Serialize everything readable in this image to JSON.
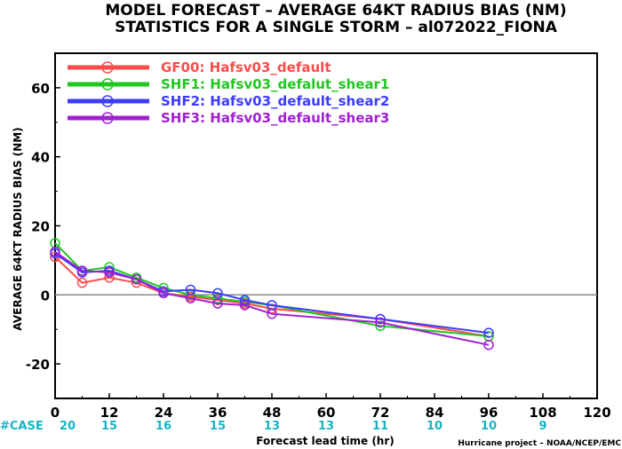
{
  "chart_data": {
    "type": "line",
    "title": "MODEL FORECAST – AVERAGE 64KT RADIUS BIAS (NM)",
    "subtitle": "STATISTICS FOR A SINGLE STORM – al072022_FIONA",
    "xlabel": "Forecast lead time (hr)",
    "ylabel": "AVERAGE 64KT RADIUS BIAS (NM)",
    "xlim": [
      0,
      120
    ],
    "ylim": [
      -30,
      70
    ],
    "x_ticks": [
      0,
      12,
      24,
      36,
      48,
      60,
      72,
      84,
      96,
      108,
      120
    ],
    "y_ticks": [
      -20,
      0,
      20,
      40,
      60
    ],
    "zero_line": 0,
    "legend_position": "top-left",
    "series": [
      {
        "name": "GF00: Hafsv03_default",
        "color": "#ff4b4b",
        "x": [
          0,
          6,
          12,
          18,
          24,
          30,
          36,
          42,
          48,
          72,
          96
        ],
        "y": [
          11,
          3.5,
          5,
          3.5,
          0.5,
          -0.5,
          -1.5,
          -2.5,
          -4,
          -7,
          -12
        ]
      },
      {
        "name": "SHF1: Hafsv03_defalut_shear1",
        "color": "#1ec81e",
        "x": [
          0,
          6,
          12,
          18,
          24,
          30,
          36,
          42,
          48,
          72,
          96
        ],
        "y": [
          15,
          7,
          8,
          5,
          2,
          0,
          -1,
          -2,
          -3,
          -9,
          -12
        ]
      },
      {
        "name": "SHF2: Hafsv03_default_shear2",
        "color": "#3c3cff",
        "x": [
          0,
          6,
          12,
          18,
          24,
          30,
          36,
          42,
          48,
          72,
          96
        ],
        "y": [
          12,
          6.5,
          7,
          4.5,
          1,
          1.5,
          0.5,
          -1.5,
          -3,
          -7,
          -11
        ]
      },
      {
        "name": "SHF3: Hafsv03_default_shear3",
        "color": "#a020d0",
        "x": [
          0,
          6,
          12,
          18,
          24,
          30,
          36,
          42,
          48,
          72,
          96
        ],
        "y": [
          12.5,
          7,
          6.5,
          4.5,
          0.5,
          -1,
          -2.5,
          -3,
          -5.5,
          -8,
          -14.5
        ]
      }
    ],
    "cases": {
      "label": "#CASE",
      "x": [
        0,
        12,
        24,
        36,
        48,
        60,
        72,
        84,
        96,
        108
      ],
      "counts": [
        "20",
        "15",
        "16",
        "15",
        "13",
        "13",
        "11",
        "10",
        "10",
        "9"
      ]
    },
    "credit": "Hurricane project – NOAA/NCEP/EMC"
  }
}
